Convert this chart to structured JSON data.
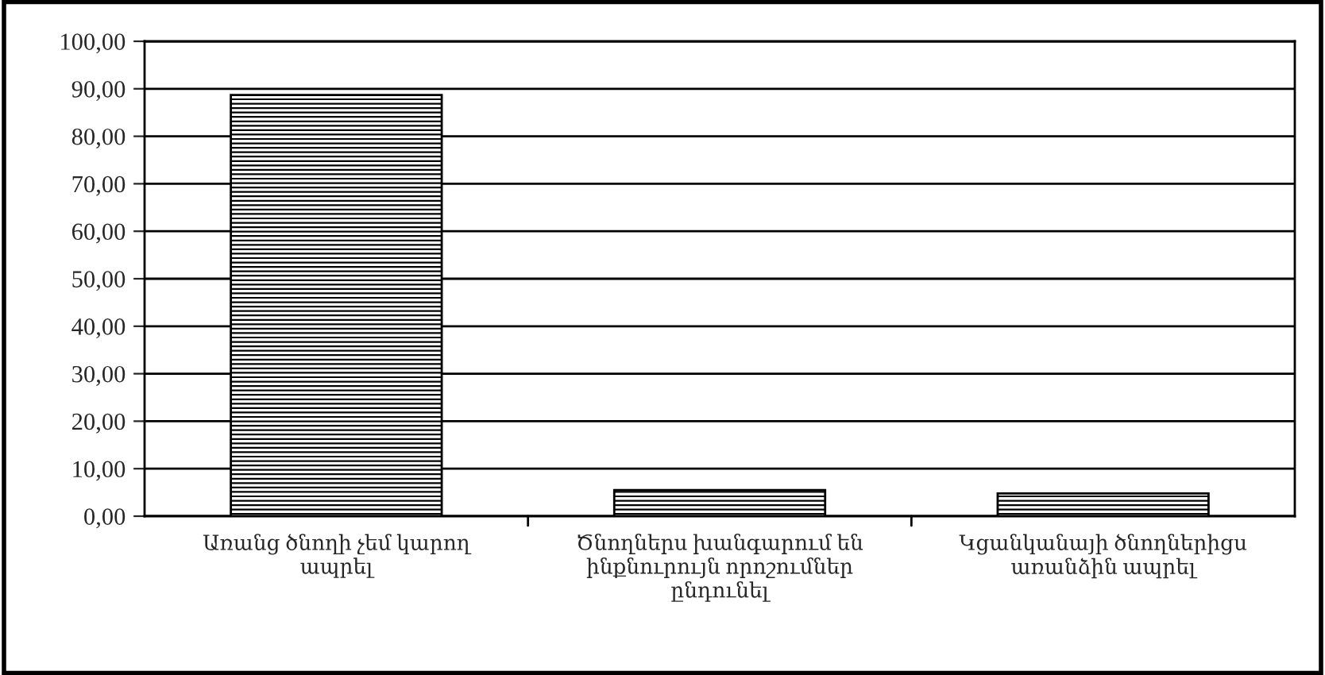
{
  "chart_data": {
    "type": "bar",
    "categories": [
      "Առանց ծնողի չեմ կարող\nապրել",
      "Ծնողներս խանգարում են\nինքնուրույն որոշումներ\nընդունել",
      "Կցանկանայի ծնողներիցս\nառանձին ապրել"
    ],
    "values": [
      88.7,
      5.5,
      4.8
    ],
    "color": "#000000",
    "ylim": [
      0,
      100
    ],
    "yticks": [
      {
        "value": 0,
        "label": "0,00"
      },
      {
        "value": 10,
        "label": "10,00"
      },
      {
        "value": 20,
        "label": "20,00"
      },
      {
        "value": 30,
        "label": "30,00"
      },
      {
        "value": 40,
        "label": "40,00"
      },
      {
        "value": 50,
        "label": "50,00"
      },
      {
        "value": 60,
        "label": "60,00"
      },
      {
        "value": 70,
        "label": "70,00"
      },
      {
        "value": 80,
        "label": "80,00"
      },
      {
        "value": 90,
        "label": "90,00"
      },
      {
        "value": 100,
        "label": "100,00"
      }
    ],
    "grid": "y",
    "legend": false
  }
}
